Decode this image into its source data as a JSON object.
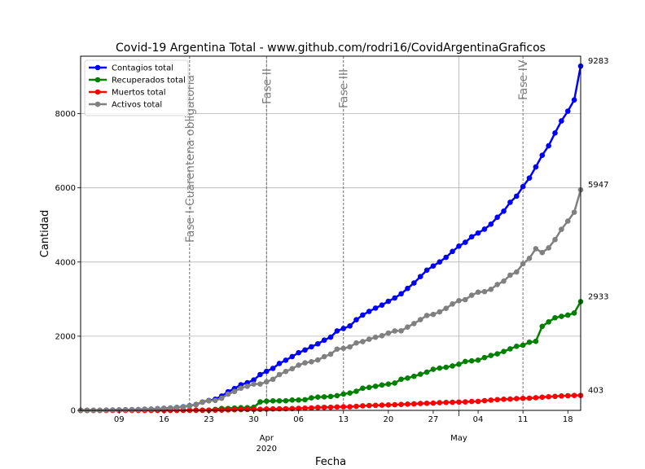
{
  "chart_data": {
    "type": "line",
    "title": "Covid-19 Argentina Total - www.github.com/rodri16/CovidArgentinaGraficos",
    "xlabel": "Fecha",
    "ylabel": "Cantidad",
    "x_start": "2020-03-03",
    "x_end": "2020-05-20",
    "ylim": [
      0,
      9550
    ],
    "yticks": [
      0,
      2000,
      4000,
      6000,
      8000
    ],
    "grid": true,
    "legend_position": "top-left",
    "xticks": [
      {
        "date": "2020-03-09",
        "label": "09"
      },
      {
        "date": "2020-03-16",
        "label": "16"
      },
      {
        "date": "2020-03-23",
        "label": "23"
      },
      {
        "date": "2020-03-30",
        "label": "30"
      },
      {
        "date": "2020-04-06",
        "label": "06"
      },
      {
        "date": "2020-04-13",
        "label": "13"
      },
      {
        "date": "2020-04-20",
        "label": "20"
      },
      {
        "date": "2020-04-27",
        "label": "27"
      },
      {
        "date": "2020-05-04",
        "label": "04"
      },
      {
        "date": "2020-05-11",
        "label": "11"
      },
      {
        "date": "2020-05-18",
        "label": "18"
      }
    ],
    "month_ticks": [
      {
        "date": "2020-04-01",
        "label": "Apr",
        "sublabel": "2020"
      },
      {
        "date": "2020-05-01",
        "label": "May",
        "sublabel": ""
      }
    ],
    "phases": [
      {
        "date": "2020-03-20",
        "label": "Fase I-Cuarentena obligatoria"
      },
      {
        "date": "2020-04-01",
        "label": "Fase II"
      },
      {
        "date": "2020-04-13",
        "label": "Fase III"
      },
      {
        "date": "2020-05-11",
        "label": "Fase IV"
      }
    ],
    "dates": [
      "2020-03-03",
      "2020-03-04",
      "2020-03-05",
      "2020-03-06",
      "2020-03-07",
      "2020-03-08",
      "2020-03-09",
      "2020-03-10",
      "2020-03-11",
      "2020-03-12",
      "2020-03-13",
      "2020-03-14",
      "2020-03-15",
      "2020-03-16",
      "2020-03-17",
      "2020-03-18",
      "2020-03-19",
      "2020-03-20",
      "2020-03-21",
      "2020-03-22",
      "2020-03-23",
      "2020-03-24",
      "2020-03-25",
      "2020-03-26",
      "2020-03-27",
      "2020-03-28",
      "2020-03-29",
      "2020-03-30",
      "2020-03-31",
      "2020-04-01",
      "2020-04-02",
      "2020-04-03",
      "2020-04-04",
      "2020-04-05",
      "2020-04-06",
      "2020-04-07",
      "2020-04-08",
      "2020-04-09",
      "2020-04-10",
      "2020-04-11",
      "2020-04-12",
      "2020-04-13",
      "2020-04-14",
      "2020-04-15",
      "2020-04-16",
      "2020-04-17",
      "2020-04-18",
      "2020-04-19",
      "2020-04-20",
      "2020-04-21",
      "2020-04-22",
      "2020-04-23",
      "2020-04-24",
      "2020-04-25",
      "2020-04-26",
      "2020-04-27",
      "2020-04-28",
      "2020-04-29",
      "2020-04-30",
      "2020-05-01",
      "2020-05-02",
      "2020-05-03",
      "2020-05-04",
      "2020-05-05",
      "2020-05-06",
      "2020-05-07",
      "2020-05-08",
      "2020-05-09",
      "2020-05-10",
      "2020-05-11",
      "2020-05-12",
      "2020-05-13",
      "2020-05-14",
      "2020-05-15",
      "2020-05-16",
      "2020-05-17",
      "2020-05-18",
      "2020-05-19",
      "2020-05-20"
    ],
    "series": [
      {
        "name": "Contagios total",
        "color": "#0000ff",
        "end_label": "9283",
        "values": [
          1,
          1,
          2,
          2,
          8,
          9,
          12,
          17,
          19,
          21,
          31,
          34,
          45,
          56,
          65,
          79,
          97,
          128,
          158,
          225,
          266,
          301,
          387,
          502,
          589,
          690,
          745,
          820,
          966,
          1054,
          1133,
          1265,
          1353,
          1451,
          1554,
          1628,
          1715,
          1795,
          1894,
          1975,
          2142,
          2208,
          2277,
          2443,
          2571,
          2669,
          2758,
          2839,
          2941,
          3031,
          3144,
          3288,
          3435,
          3607,
          3780,
          3892,
          4003,
          4127,
          4285,
          4428,
          4532,
          4681,
          4783,
          4887,
          5020,
          5208,
          5371,
          5611,
          5776,
          6034,
          6265,
          6563,
          6879,
          7134,
          7479,
          7805,
          8068,
          8371,
          9283
        ]
      },
      {
        "name": "Recuperados total",
        "color": "#008000",
        "end_label": "2933",
        "values": [
          0,
          0,
          0,
          0,
          0,
          0,
          0,
          0,
          0,
          0,
          0,
          0,
          0,
          0,
          0,
          1,
          3,
          3,
          3,
          3,
          3,
          27,
          52,
          52,
          63,
          72,
          72,
          83,
          228,
          248,
          256,
          256,
          260,
          279,
          280,
          286,
          338,
          358,
          365,
          375,
          397,
          440,
          468,
          515,
          596,
          619,
          650,
          685,
          709,
          737,
          840,
          872,
          919,
          976,
          1030,
          1107,
          1140,
          1162,
          1198,
          1245,
          1318,
          1336,
          1354,
          1424,
          1480,
          1524,
          1587,
          1659,
          1727,
          1757,
          1837,
          1862,
          2266,
          2385,
          2497,
          2534,
          2569,
          2625,
          2933
        ]
      },
      {
        "name": "Muertos total",
        "color": "#ff0000",
        "end_label": "403",
        "values": [
          0,
          0,
          0,
          0,
          0,
          0,
          0,
          1,
          1,
          2,
          2,
          2,
          2,
          2,
          2,
          2,
          3,
          3,
          4,
          4,
          6,
          6,
          8,
          12,
          17,
          20,
          23,
          27,
          28,
          36,
          39,
          43,
          44,
          48,
          55,
          60,
          66,
          78,
          82,
          84,
          93,
          96,
          98,
          109,
          122,
          132,
          136,
          141,
          147,
          152,
          160,
          169,
          176,
          185,
          192,
          197,
          207,
          214,
          219,
          225,
          228,
          240,
          242,
          262,
          276,
          290,
          300,
          305,
          318,
          324,
          329,
          341,
          357,
          368,
          378,
          389,
          395,
          403,
          403
        ]
      },
      {
        "name": "Activos total",
        "color": "#808080",
        "end_label": "5947",
        "values": [
          1,
          1,
          2,
          2,
          8,
          9,
          12,
          16,
          18,
          19,
          29,
          32,
          43,
          54,
          63,
          76,
          91,
          122,
          151,
          218,
          257,
          268,
          327,
          438,
          509,
          598,
          650,
          710,
          710,
          770,
          838,
          966,
          1049,
          1124,
          1219,
          1282,
          1311,
          1359,
          1447,
          1516,
          1652,
          1672,
          1711,
          1819,
          1853,
          1918,
          1972,
          2013,
          2085,
          2142,
          2144,
          2247,
          2340,
          2446,
          2558,
          2588,
          2656,
          2751,
          2868,
          2958,
          2986,
          3105,
          3187,
          3201,
          3264,
          3394,
          3484,
          3647,
          3731,
          3953,
          4099,
          4360,
          4256,
          4381,
          4604,
          4882,
          5104,
          5343,
          5947
        ]
      }
    ]
  }
}
